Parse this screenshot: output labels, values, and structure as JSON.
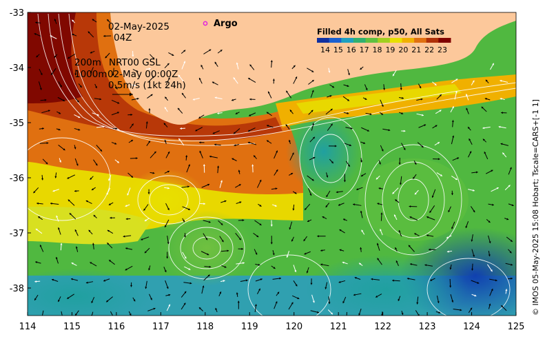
{
  "map": {
    "date_label": "02-May-2025",
    "time_label": "04Z",
    "depth_label": "200m",
    "product_label": "NRT00 GSL",
    "depth2_label": "1000m",
    "ref_time_label": "02-May 00:00Z",
    "vector_scale_label": "0.5m/s (1kt 24h)",
    "argo_label": "Argo",
    "credit": "© IMOS 05-May-2025 15:08 Hobart; Tscale=CARS+[-1 1]",
    "lon_ticks": [
      "114",
      "115",
      "116",
      "117",
      "118",
      "119",
      "120",
      "121",
      "122",
      "123",
      "124",
      "125"
    ],
    "lat_ticks": [
      "-33",
      "-34",
      "-35",
      "-36",
      "-37",
      "-38"
    ],
    "lon_range": [
      114,
      125
    ],
    "lat_range": [
      -38.5,
      -33
    ],
    "land_color": "#fcc89b"
  },
  "colorbar": {
    "title": "Filled 4h comp, p50, All Sats",
    "ticks": [
      "14",
      "15",
      "16",
      "17",
      "18",
      "19",
      "20",
      "21",
      "22",
      "23"
    ],
    "colors": [
      "#1030a0",
      "#1a60d0",
      "#1fa0c0",
      "#30b070",
      "#60c040",
      "#a0d020",
      "#e8e000",
      "#f0b000",
      "#e07010",
      "#b03008",
      "#800000"
    ]
  }
}
